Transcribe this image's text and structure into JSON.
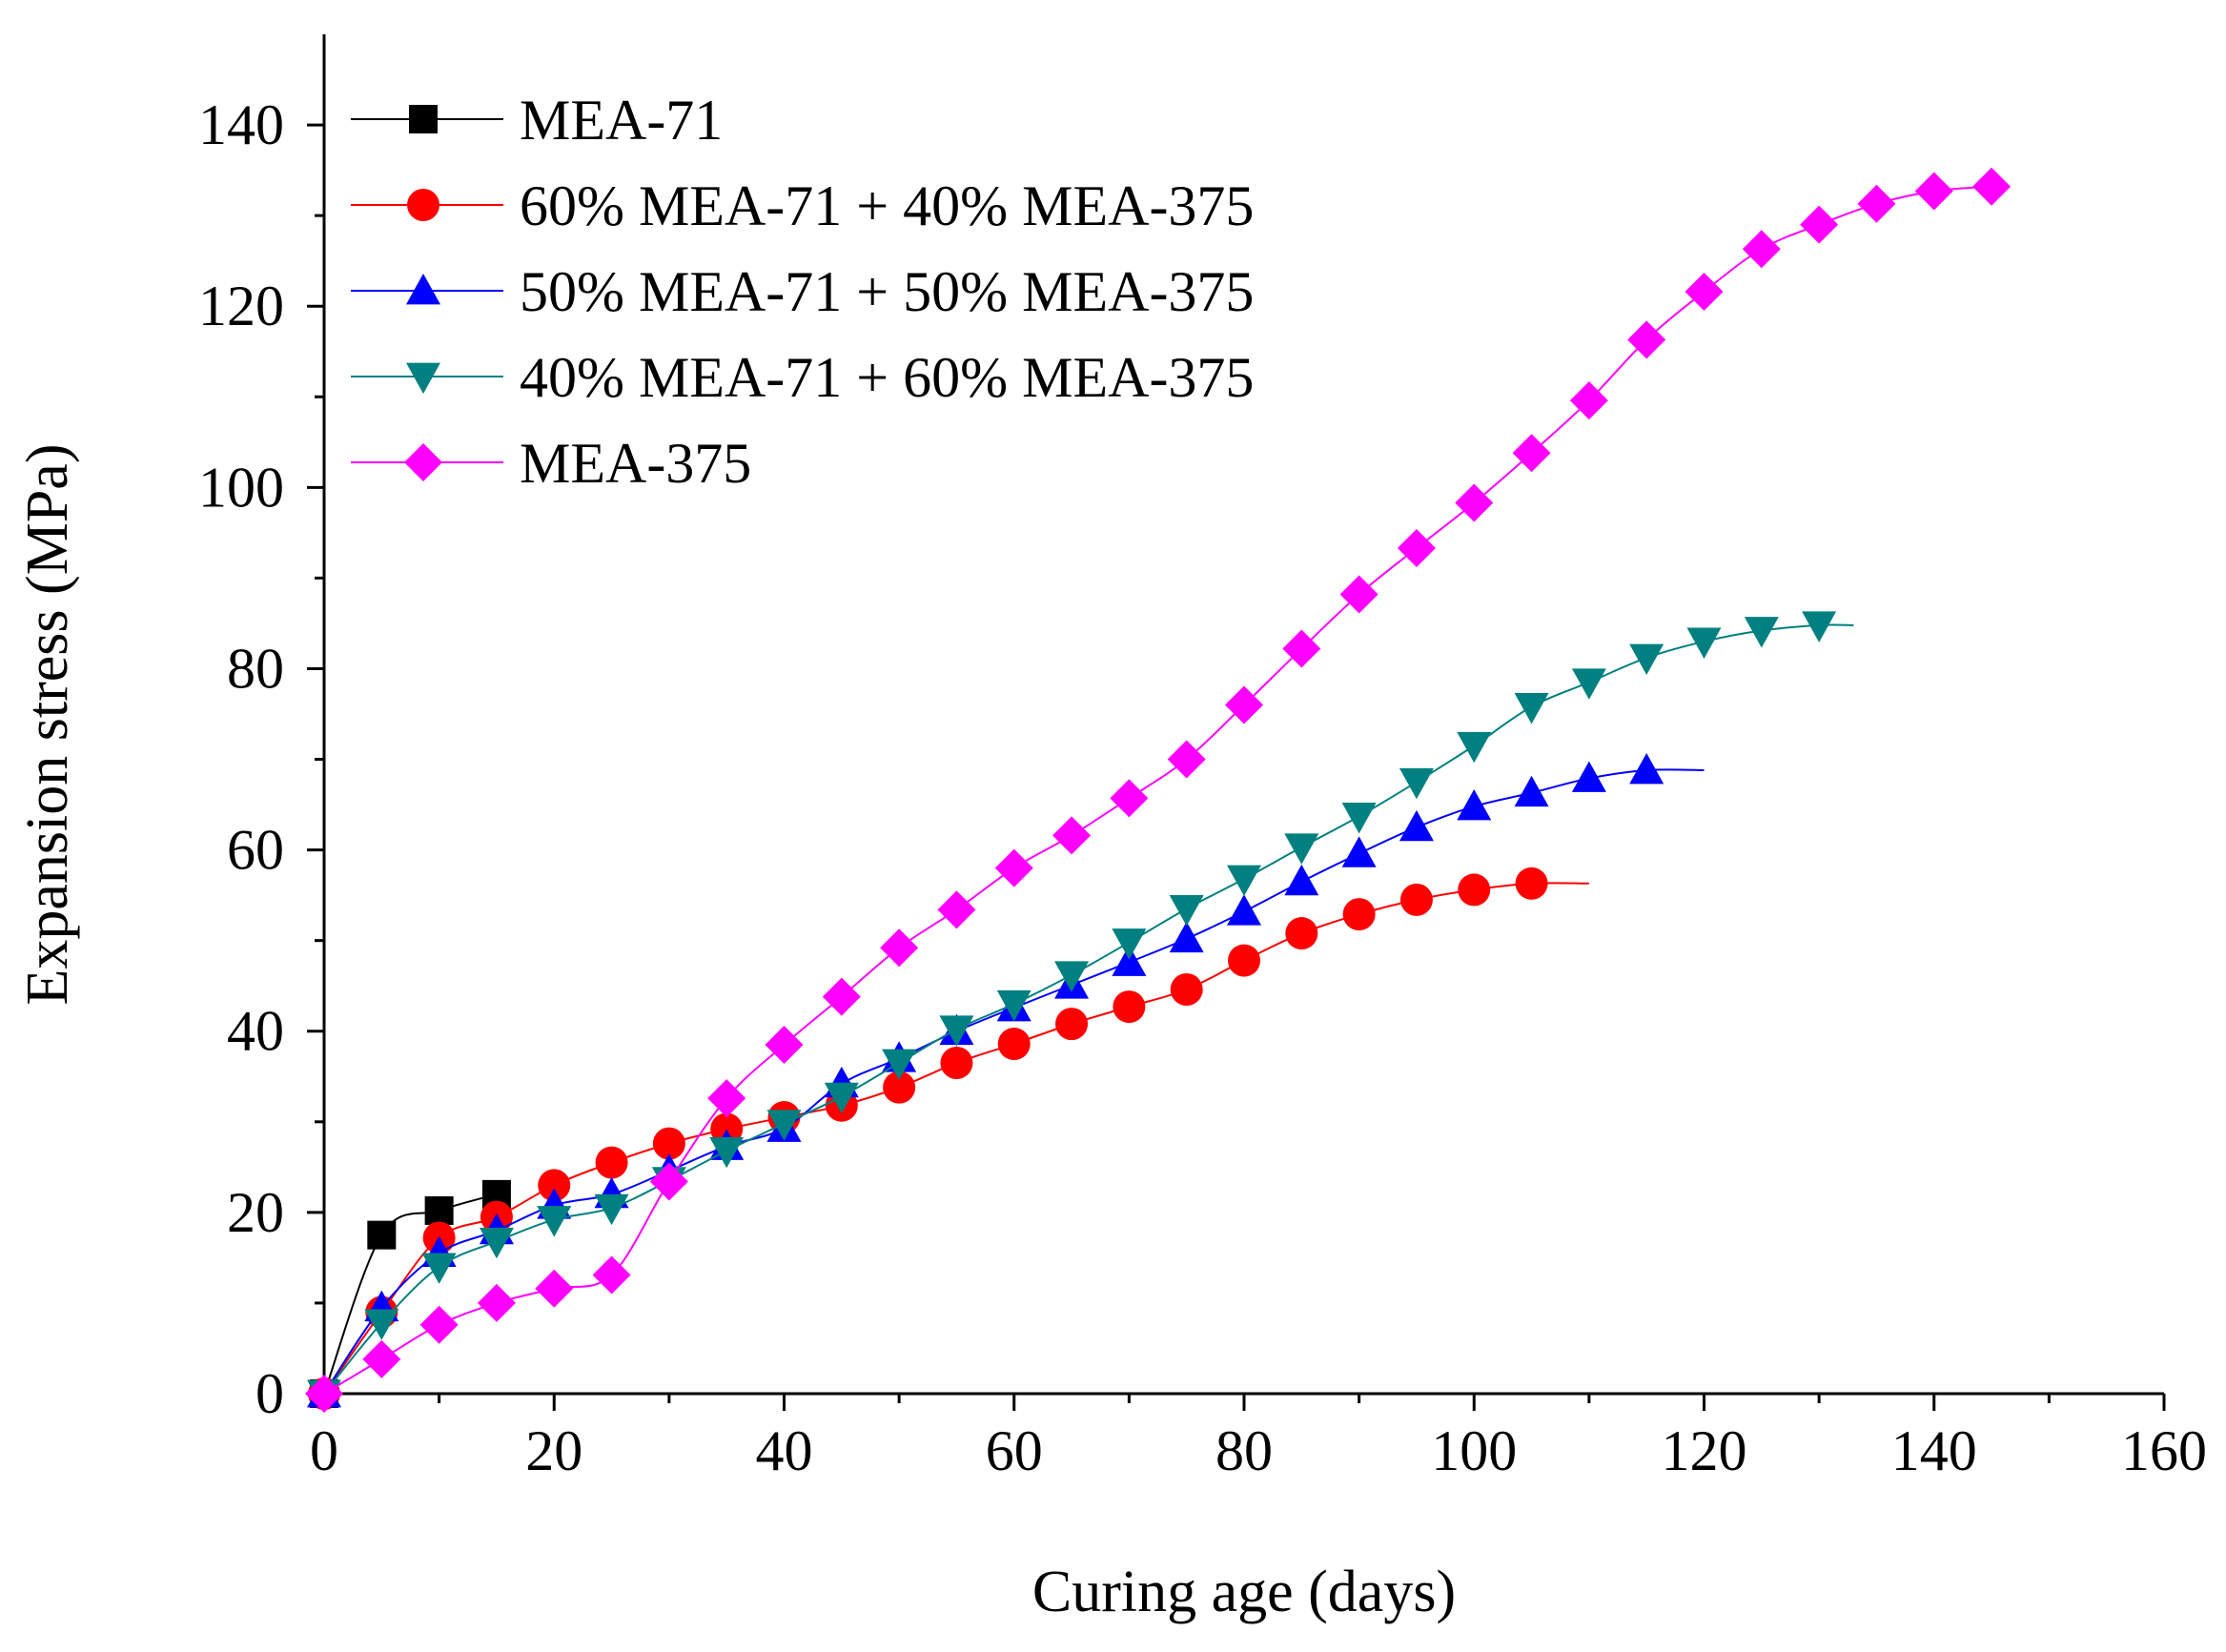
{
  "chart_data": {
    "type": "line",
    "title": "",
    "xlabel": "Curing age (days)",
    "ylabel": "Expansion stress (MPa)",
    "xlim": [
      0,
      160
    ],
    "ylim": [
      0,
      150
    ],
    "xticks": [
      0,
      20,
      40,
      60,
      80,
      100,
      120,
      140,
      160
    ],
    "yticks": [
      0,
      20,
      40,
      60,
      80,
      100,
      120,
      140
    ],
    "grid": false,
    "legend_position": "top-left",
    "series": [
      {
        "name": "MEA-71",
        "color": "#000000",
        "marker": "square",
        "x": [
          0,
          5,
          10,
          15
        ],
        "y": [
          0,
          17.5,
          20.2,
          22.0
        ],
        "line_end": 15
      },
      {
        "name": "60% MEA-71 + 40% MEA-375",
        "color": "#ff0000",
        "marker": "circle",
        "x": [
          0,
          5,
          10,
          15,
          20,
          25,
          30,
          35,
          40,
          45,
          50,
          55,
          60,
          65,
          70,
          75,
          80,
          85,
          90,
          95,
          100,
          105
        ],
        "y": [
          0,
          9.0,
          17.2,
          19.5,
          23.0,
          25.5,
          27.6,
          29.2,
          30.5,
          31.8,
          33.8,
          36.5,
          38.6,
          40.8,
          42.7,
          44.6,
          47.8,
          50.8,
          52.9,
          54.5,
          55.6,
          56.3
        ],
        "line_end": 110
      },
      {
        "name": "50% MEA-71 + 50% MEA-375",
        "color": "#0000ff",
        "marker": "triangle-up",
        "x": [
          0,
          5,
          10,
          15,
          20,
          25,
          30,
          35,
          40,
          45,
          50,
          55,
          60,
          65,
          70,
          75,
          80,
          85,
          90,
          95,
          100,
          105,
          110,
          115
        ],
        "y": [
          0,
          9.5,
          15.5,
          18.0,
          20.8,
          22.0,
          24.6,
          27.3,
          29.3,
          34.2,
          37.0,
          40.0,
          42.6,
          45.1,
          47.6,
          50.2,
          53.2,
          56.5,
          59.6,
          62.5,
          64.8,
          66.3,
          67.9,
          68.8
        ],
        "line_end": 120
      },
      {
        "name": "40% MEA-71 + 60% MEA-375",
        "color": "#008080",
        "marker": "triangle-down",
        "x": [
          0,
          5,
          10,
          15,
          20,
          25,
          30,
          35,
          40,
          45,
          50,
          55,
          60,
          65,
          70,
          75,
          80,
          85,
          90,
          95,
          100,
          105,
          110,
          115,
          120,
          125,
          130
        ],
        "y": [
          0,
          7.8,
          14.0,
          16.8,
          19.2,
          20.5,
          23.5,
          26.8,
          29.8,
          32.8,
          36.5,
          40.2,
          43.0,
          46.2,
          49.8,
          53.5,
          56.8,
          60.3,
          63.7,
          67.5,
          71.5,
          75.8,
          78.5,
          81.2,
          83.0,
          84.2,
          84.8
        ],
        "line_end": 133
      },
      {
        "name": "MEA-375",
        "color": "#ff00ff",
        "marker": "diamond",
        "x": [
          0,
          5,
          10,
          15,
          20,
          25,
          30,
          35,
          40,
          45,
          50,
          55,
          60,
          65,
          70,
          75,
          80,
          85,
          90,
          95,
          100,
          105,
          110,
          115,
          120,
          125,
          130,
          135,
          140,
          145
        ],
        "y": [
          0,
          3.8,
          7.6,
          10.0,
          11.6,
          13.1,
          23.4,
          32.6,
          38.5,
          43.8,
          49.2,
          53.4,
          58.0,
          61.6,
          65.7,
          70.0,
          76.0,
          82.2,
          88.2,
          93.3,
          98.3,
          103.8,
          109.6,
          116.3,
          121.6,
          126.3,
          129.0,
          131.3,
          132.7,
          133.2
        ],
        "line_end": 145
      }
    ]
  }
}
